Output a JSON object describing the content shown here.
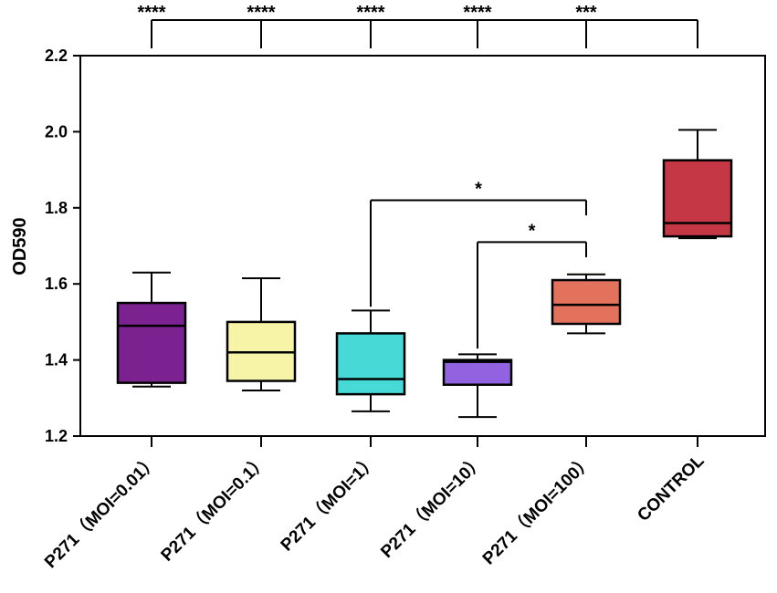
{
  "chart_data": {
    "type": "box",
    "title": "",
    "xlabel": "",
    "ylabel": "OD590",
    "ylim": [
      1.2,
      2.2
    ],
    "yticks": [
      "1.2",
      "1.4",
      "1.6",
      "1.8",
      "2.0",
      "2.2"
    ],
    "categories": [
      "P271（MOI=0.01）",
      "P271（MOI=0.1）",
      "P271（MOI=1）",
      "P271（MOI=10）",
      "P271（MOI=100）",
      "CONTROL"
    ],
    "boxes": [
      {
        "category": "P271（MOI=0.01）",
        "min": 1.33,
        "q1": 1.34,
        "median": 1.49,
        "q3": 1.55,
        "max": 1.63,
        "color": "#7b2290"
      },
      {
        "category": "P271（MOI=0.1）",
        "min": 1.32,
        "q1": 1.345,
        "median": 1.42,
        "q3": 1.5,
        "max": 1.615,
        "color": "#f7f4a7"
      },
      {
        "category": "P271（MOI=1）",
        "min": 1.265,
        "q1": 1.31,
        "median": 1.35,
        "q3": 1.47,
        "max": 1.53,
        "color": "#47d9d6"
      },
      {
        "category": "P271（MOI=10）",
        "min": 1.25,
        "q1": 1.335,
        "median": 1.395,
        "q3": 1.4,
        "max": 1.415,
        "color": "#9263e0"
      },
      {
        "category": "P271（MOI=100）",
        "min": 1.47,
        "q1": 1.495,
        "median": 1.545,
        "q3": 1.61,
        "max": 1.625,
        "color": "#e2725c"
      },
      {
        "category": "CONTROL",
        "min": 1.72,
        "q1": 1.725,
        "median": 1.76,
        "q3": 1.925,
        "max": 2.005,
        "color": "#c53744"
      }
    ],
    "significance_top": [
      {
        "from": 0,
        "to": 5,
        "label": "****"
      },
      {
        "from": 1,
        "to": 5,
        "label": "****"
      },
      {
        "from": 2,
        "to": 5,
        "label": "****"
      },
      {
        "from": 3,
        "to": 5,
        "label": "****"
      },
      {
        "from": 4,
        "to": 5,
        "label": "***"
      }
    ],
    "significance_inner": [
      {
        "from": 2,
        "to": 4,
        "y": 1.82,
        "start_y": 1.54,
        "end_y": 1.78,
        "label": "*"
      },
      {
        "from": 3,
        "to": 4,
        "y": 1.71,
        "start_y": 1.43,
        "end_y": 1.67,
        "label": "*"
      }
    ]
  }
}
